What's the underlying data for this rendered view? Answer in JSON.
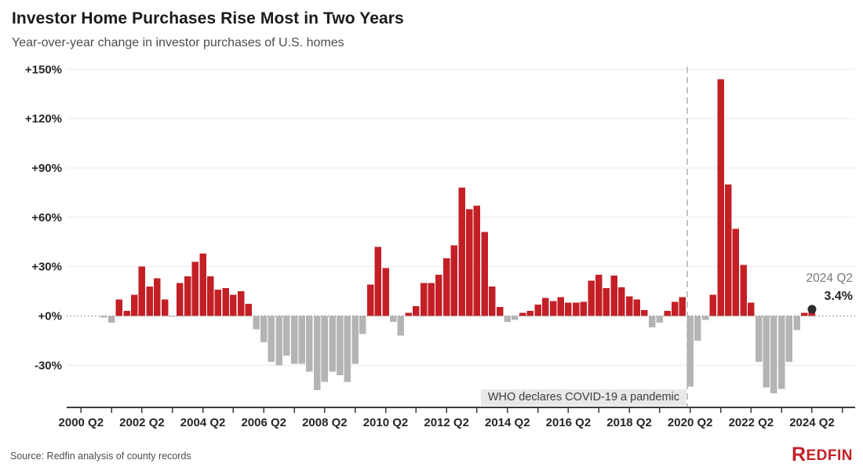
{
  "header": {
    "title": "Investor Home Purchases Rise Most in Two Years",
    "subtitle": "Year-over-year change in investor purchases of U.S. homes"
  },
  "annotations": {
    "covid_line_label": "WHO declares COVID-19 a pandemic",
    "covid_line_after": "2020 Q1",
    "latest": {
      "label": "2024 Q2",
      "value": "3.4%"
    }
  },
  "footer": {
    "source": "Source: Redfin analysis of county records",
    "logo_first_letter": "R",
    "logo_rest": "EDFIN"
  },
  "colors": {
    "positive_bar": "#c32026",
    "negative_bar": "#b4b4b4",
    "gridline": "#e9e9e9",
    "zero_line": "#8a8a8a",
    "covid_dashed_line": "#b5b5b5",
    "axis_line": "#3c3c3c",
    "tick_label": "#262626",
    "latest_dot": "#2e2e2e"
  },
  "chart_data": {
    "type": "bar",
    "title": "Investor Home Purchases Rise Most in Two Years",
    "subtitle": "Year-over-year change in investor purchases of U.S. homes",
    "unit": "percent change year-over-year",
    "frequency": "quarterly",
    "grid": true,
    "ylim": [
      -57,
      152
    ],
    "y_ticks": [
      "+150%",
      "+120%",
      "+90%",
      "+60%",
      "+30%",
      "+0%",
      "-30%"
    ],
    "y_tick_values": [
      150,
      120,
      90,
      60,
      30,
      0,
      -30
    ],
    "x_tick_labels": [
      "2000 Q2",
      "2002 Q2",
      "2004 Q2",
      "2006 Q2",
      "2008 Q2",
      "2010 Q2",
      "2012 Q2",
      "2014 Q2",
      "2016 Q2",
      "2018 Q2",
      "2020 Q2",
      "2022 Q2",
      "2024 Q2"
    ],
    "categories": [
      "2001 Q1",
      "2001 Q2",
      "2001 Q3",
      "2001 Q4",
      "2002 Q1",
      "2002 Q2",
      "2002 Q3",
      "2002 Q4",
      "2003 Q1",
      "2003 Q2",
      "2003 Q3",
      "2003 Q4",
      "2004 Q1",
      "2004 Q2",
      "2004 Q3",
      "2004 Q4",
      "2005 Q1",
      "2005 Q2",
      "2005 Q3",
      "2005 Q4",
      "2006 Q1",
      "2006 Q2",
      "2006 Q3",
      "2006 Q4",
      "2007 Q1",
      "2007 Q2",
      "2007 Q3",
      "2007 Q4",
      "2008 Q1",
      "2008 Q2",
      "2008 Q3",
      "2008 Q4",
      "2009 Q1",
      "2009 Q2",
      "2009 Q3",
      "2009 Q4",
      "2010 Q1",
      "2010 Q2",
      "2010 Q3",
      "2010 Q4",
      "2011 Q1",
      "2011 Q2",
      "2011 Q3",
      "2011 Q4",
      "2012 Q1",
      "2012 Q2",
      "2012 Q3",
      "2012 Q4",
      "2013 Q1",
      "2013 Q2",
      "2013 Q3",
      "2013 Q4",
      "2014 Q1",
      "2014 Q2",
      "2014 Q3",
      "2014 Q4",
      "2015 Q1",
      "2015 Q2",
      "2015 Q3",
      "2015 Q4",
      "2016 Q1",
      "2016 Q2",
      "2016 Q3",
      "2016 Q4",
      "2017 Q1",
      "2017 Q2",
      "2017 Q3",
      "2017 Q4",
      "2018 Q1",
      "2018 Q2",
      "2018 Q3",
      "2018 Q4",
      "2019 Q1",
      "2019 Q2",
      "2019 Q3",
      "2019 Q4",
      "2020 Q1",
      "2020 Q2",
      "2020 Q3",
      "2020 Q4",
      "2021 Q1",
      "2021 Q2",
      "2021 Q3",
      "2021 Q4",
      "2022 Q1",
      "2022 Q2",
      "2022 Q3",
      "2022 Q4",
      "2023 Q1",
      "2023 Q2",
      "2023 Q3",
      "2023 Q4",
      "2024 Q1",
      "2024 Q2"
    ],
    "values": [
      -1,
      -4,
      10,
      3,
      13,
      30,
      18,
      23,
      10,
      -0.5,
      20,
      24,
      33,
      38,
      24,
      16,
      17,
      13,
      15,
      7.5,
      -8,
      -16,
      -28,
      -30,
      -24,
      -29,
      -29,
      -34,
      -45,
      -40,
      -34,
      -36,
      -40,
      -29,
      -11,
      19,
      42,
      29,
      -3.5,
      -12,
      2,
      6,
      20,
      20,
      25,
      35,
      43,
      78,
      65,
      67,
      51,
      18,
      5.5,
      -3.5,
      -2.5,
      2,
      3,
      7,
      11,
      9,
      11.5,
      8,
      8,
      8.5,
      21.5,
      25,
      17,
      24.5,
      17.5,
      12,
      10,
      3.5,
      -7,
      -4,
      3,
      8.5,
      11.5,
      -43,
      -15,
      -2.5,
      13,
      144,
      80,
      53,
      31,
      8,
      -28,
      -43.5,
      -47,
      -44.5,
      -28,
      -8.5,
      2,
      3.4
    ],
    "highlighted_point": {
      "category": "2024 Q2",
      "value": 3.4
    },
    "legend": "none"
  }
}
